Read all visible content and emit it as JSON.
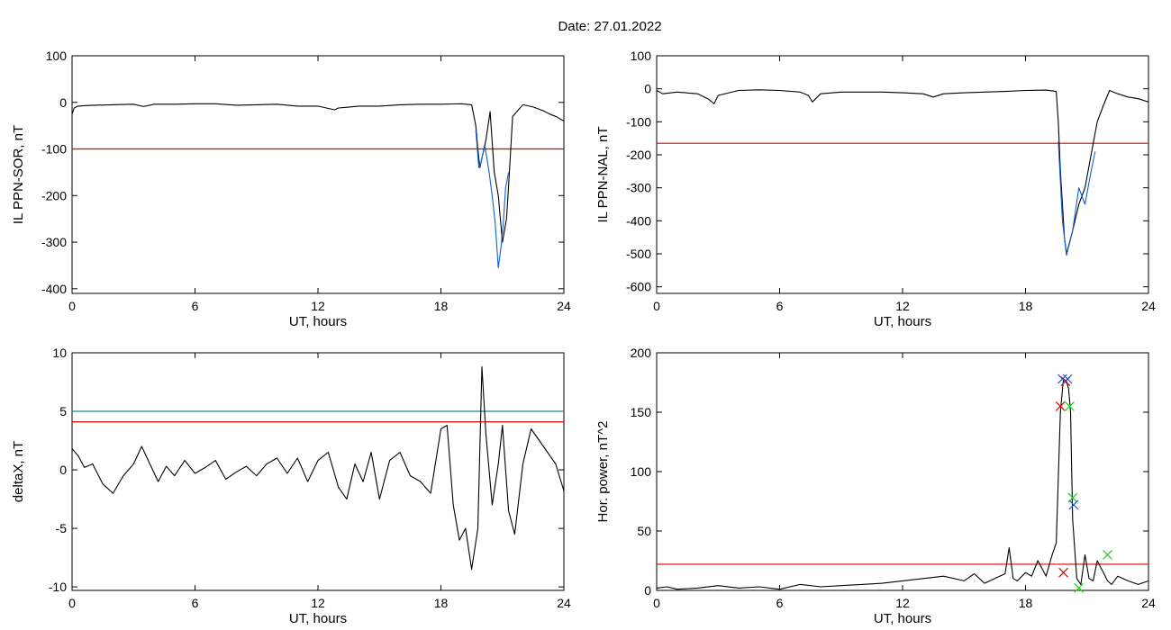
{
  "title": "Date:  27.01.2022",
  "chart_data": [
    {
      "type": "line",
      "xlabel": "UT, hours",
      "ylabel": "IL PPN-SOR, nT",
      "xlim": [
        0,
        24
      ],
      "ylim": [
        -410,
        100
      ],
      "xticks": [
        0,
        6,
        12,
        18,
        24
      ],
      "yticks": [
        100,
        0,
        -100,
        -200,
        -300,
        -400
      ],
      "threshold": -100,
      "threshold_color": "#e00000",
      "series": [
        {
          "color": "#000000",
          "x": [
            0,
            0.1,
            0.3,
            0.6,
            1,
            2,
            3,
            3.5,
            4,
            5,
            6,
            7,
            8,
            9,
            10,
            11,
            12,
            12.8,
            13,
            14,
            15,
            16,
            17,
            18,
            19,
            19.5,
            19.7,
            19.8,
            19.9,
            20,
            20.1,
            20.2,
            20.4,
            20.6,
            20.8,
            21,
            21.2,
            21.3,
            21.5,
            22,
            22.5,
            23,
            23.3,
            23.6,
            24
          ],
          "y": [
            -25,
            -12,
            -8,
            -7,
            -6,
            -5,
            -4,
            -9,
            -4,
            -4,
            -3,
            -3,
            -6,
            -5,
            -4,
            -8,
            -8,
            -16,
            -12,
            -8,
            -8,
            -5,
            -4,
            -4,
            -3,
            -5,
            -50,
            -100,
            -140,
            -120,
            -100,
            -80,
            -20,
            -150,
            -200,
            -300,
            -250,
            -180,
            -30,
            -5,
            -10,
            -18,
            -25,
            -30,
            -40
          ]
        },
        {
          "color": "#1060d0",
          "x": [
            19.7,
            19.85,
            19.95,
            20.05,
            20.15,
            20.35,
            20.5,
            20.65,
            20.8,
            20.95,
            21.05,
            21.15,
            21.3
          ],
          "y": [
            -60,
            -140,
            -130,
            -110,
            -95,
            -150,
            -200,
            -260,
            -355,
            -305,
            -255,
            -185,
            -150
          ]
        }
      ]
    },
    {
      "type": "line",
      "xlabel": "UT, hours",
      "ylabel": "IL PPN-NAL, nT",
      "xlim": [
        0,
        24
      ],
      "ylim": [
        -620,
        100
      ],
      "xticks": [
        0,
        6,
        12,
        18,
        24
      ],
      "yticks": [
        100,
        0,
        -100,
        -200,
        -300,
        -400,
        -500,
        -600
      ],
      "threshold": -165,
      "threshold_color": "#e00000",
      "series": [
        {
          "color": "#000000",
          "x": [
            0,
            0.3,
            1,
            2,
            2.5,
            2.8,
            3,
            4,
            5,
            6,
            7,
            7.4,
            7.6,
            8,
            9,
            10,
            11,
            12,
            13,
            13.5,
            14,
            15,
            16,
            17,
            18,
            19,
            19.5,
            19.6,
            19.7,
            19.9,
            20,
            20.3,
            20.6,
            20.9,
            21.2,
            21.5,
            21.8,
            22.1,
            22.5,
            23,
            23.5,
            24
          ],
          "y": [
            -5,
            -15,
            -10,
            -15,
            -30,
            -45,
            -20,
            -5,
            -3,
            -5,
            -10,
            -20,
            -40,
            -15,
            -10,
            -10,
            -10,
            -12,
            -15,
            -25,
            -15,
            -12,
            -10,
            -8,
            -5,
            -4,
            -8,
            -100,
            -250,
            -450,
            -500,
            -430,
            -350,
            -300,
            -200,
            -100,
            -50,
            -5,
            -15,
            -25,
            -30,
            -40
          ]
        },
        {
          "color": "#1060d0",
          "x": [
            19.6,
            19.8,
            20.0,
            20.3,
            20.6,
            20.9,
            21.2,
            21.4
          ],
          "y": [
            -160,
            -400,
            -505,
            -430,
            -300,
            -350,
            -250,
            -190
          ]
        }
      ]
    },
    {
      "type": "line",
      "xlabel": "UT, hours",
      "ylabel": "deltaX, nT",
      "xlim": [
        0,
        24
      ],
      "ylim": [
        -10.3,
        10
      ],
      "xticks": [
        0,
        6,
        12,
        18,
        24
      ],
      "yticks": [
        10,
        5,
        0,
        -5,
        -10
      ],
      "threshold": 4.1,
      "threshold_color": "#e00000",
      "threshold2": 5.0,
      "threshold2_color": "#208a8a",
      "series": [
        {
          "color": "#000000",
          "x": [
            0,
            0.3,
            0.6,
            1,
            1.5,
            2,
            2.5,
            3,
            3.4,
            3.8,
            4.2,
            4.6,
            5,
            5.5,
            6,
            6.5,
            7,
            7.5,
            8,
            8.5,
            9,
            9.5,
            10,
            10.5,
            11,
            11.5,
            12,
            12.5,
            13,
            13.4,
            13.8,
            14.2,
            14.6,
            15,
            15.5,
            16,
            16.5,
            17,
            17.5,
            18,
            18.3,
            18.6,
            18.9,
            19.2,
            19.5,
            19.8,
            20.0,
            20.2,
            20.5,
            20.8,
            21.0,
            21.3,
            21.6,
            22.0,
            22.4,
            22.8,
            23.2,
            23.6,
            24.0
          ],
          "y": [
            1.8,
            1.2,
            0.2,
            0.5,
            -1.2,
            -2.0,
            -0.5,
            0.5,
            2.0,
            0.5,
            -1.0,
            0.3,
            -0.5,
            0.8,
            -0.3,
            0.2,
            0.8,
            -0.8,
            -0.2,
            0.3,
            -0.5,
            0.5,
            1.0,
            -0.3,
            1.0,
            -1.0,
            0.8,
            1.5,
            -1.5,
            -2.5,
            0.5,
            -1.0,
            1.5,
            -2.5,
            0.8,
            1.5,
            -0.5,
            -1.0,
            -2.0,
            3.5,
            3.8,
            -3.0,
            -6.0,
            -5.0,
            -8.5,
            -5.0,
            8.8,
            3.0,
            -3.0,
            0.5,
            3.8,
            -3.5,
            -5.5,
            0.5,
            3.5,
            2.5,
            1.5,
            0.5,
            -1.8
          ]
        }
      ]
    },
    {
      "type": "line",
      "xlabel": "UT, hours",
      "ylabel": "Hor. power, nT^2",
      "xlim": [
        0,
        24
      ],
      "ylim": [
        0,
        200
      ],
      "xticks": [
        0,
        6,
        12,
        18,
        24
      ],
      "yticks": [
        0,
        50,
        100,
        150,
        200
      ],
      "threshold": 22,
      "threshold_color": "#e00000",
      "series": [
        {
          "color": "#000000",
          "x": [
            0,
            0.5,
            1,
            2,
            3,
            4,
            5,
            6,
            7,
            8,
            9,
            10,
            11,
            12,
            13,
            14,
            15,
            15.5,
            16,
            16.5,
            17,
            17.2,
            17.4,
            17.6,
            18,
            18.3,
            18.6,
            19.0,
            19.3,
            19.5,
            19.7,
            19.85,
            20.0,
            20.1,
            20.2,
            20.3,
            20.5,
            20.7,
            20.9,
            21.1,
            21.3,
            21.5,
            21.8,
            22.0,
            22.2,
            22.5,
            23.0,
            23.5,
            24.0
          ],
          "y": [
            2,
            3,
            1,
            2,
            4,
            2,
            3,
            1,
            5,
            3,
            4,
            5,
            6,
            8,
            10,
            12,
            8,
            14,
            6,
            10,
            14,
            36,
            10,
            8,
            15,
            12,
            25,
            12,
            30,
            40,
            150,
            178,
            176,
            170,
            150,
            60,
            10,
            5,
            30,
            10,
            8,
            25,
            15,
            8,
            5,
            12,
            8,
            5,
            8
          ]
        }
      ],
      "markers": [
        {
          "x": 19.7,
          "y": 155,
          "color": "#e00000"
        },
        {
          "x": 19.8,
          "y": 178,
          "color": "#1a5fd6"
        },
        {
          "x": 19.95,
          "y": 176,
          "color": "#e00000"
        },
        {
          "x": 20.05,
          "y": 178,
          "color": "#1a5fd6"
        },
        {
          "x": 20.15,
          "y": 155,
          "color": "#22cc22"
        },
        {
          "x": 19.85,
          "y": 15,
          "color": "#e00000"
        },
        {
          "x": 20.3,
          "y": 78,
          "color": "#22cc22"
        },
        {
          "x": 20.35,
          "y": 72,
          "color": "#1a5fd6"
        },
        {
          "x": 20.6,
          "y": 2,
          "color": "#22cc22"
        },
        {
          "x": 22.0,
          "y": 30,
          "color": "#22cc22"
        }
      ]
    }
  ]
}
